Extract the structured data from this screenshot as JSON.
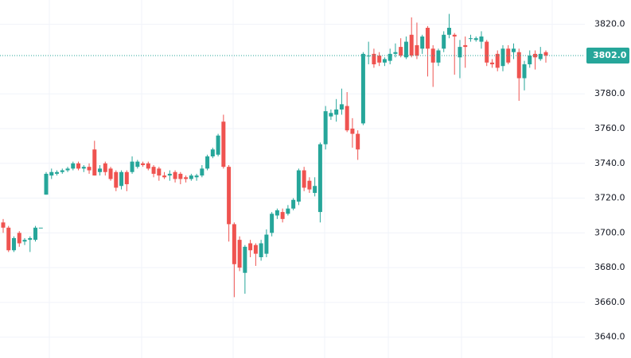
{
  "chart_data": {
    "type": "candlestick",
    "up_color": "#26a69a",
    "down_color": "#ef5350",
    "grid": true,
    "ylim": [
      3628,
      3834
    ],
    "yticks": [
      {
        "value": 3640,
        "label": "3640.0"
      },
      {
        "value": 3660,
        "label": "3660.0"
      },
      {
        "value": 3680,
        "label": "3680.0"
      },
      {
        "value": 3700,
        "label": "3700.0"
      },
      {
        "value": 3720,
        "label": "3720.0"
      },
      {
        "value": 3740,
        "label": "3740.0"
      },
      {
        "value": 3760,
        "label": "3760.0"
      },
      {
        "value": 3780,
        "label": "3780.0"
      },
      {
        "value": 3820,
        "label": "3820.0"
      }
    ],
    "last_price": {
      "value": 3802,
      "label": "3802.0"
    },
    "open": [
      3706,
      3703,
      3690,
      3700,
      3695,
      3696,
      3696,
      3703,
      3722,
      3733,
      3734,
      3735,
      3736,
      3737,
      3740,
      3737,
      3738,
      3748,
      3735,
      3740,
      3737,
      3735,
      3727,
      3735,
      3735,
      3738,
      3740,
      3740,
      3738,
      3737,
      3733,
      3733,
      3735,
      3734,
      3732,
      3731,
      3732,
      3733,
      3737,
      3744,
      3745,
      3764,
      3738,
      3705,
      3696,
      3677,
      3694,
      3693,
      3686,
      3688,
      3700,
      3710,
      3712,
      3711,
      3714,
      3718,
      3736,
      3730,
      3723,
      3712,
      3751,
      3767,
      3768,
      3771,
      3773,
      3760,
      3757,
      3763,
      3802,
      3803,
      3802,
      3798,
      3799,
      3803,
      3807,
      3801,
      3814,
      3808,
      3806,
      3818,
      3806,
      3798,
      3806,
      3814,
      3814,
      3801,
      3808,
      3812,
      3811,
      3810,
      3810,
      3798,
      3803,
      3796,
      3806,
      3804,
      3804,
      3789,
      3797,
      3803,
      3800,
      3804
    ],
    "high": [
      3708,
      3704,
      3698,
      3701,
      3697,
      3698,
      3704,
      3703,
      3735,
      3737,
      3736,
      3737,
      3738,
      3741,
      3741,
      3739,
      3740,
      3753,
      3739,
      3741,
      3738,
      3736,
      3736,
      3736,
      3744,
      3742,
      3741,
      3741,
      3739,
      3738,
      3735,
      3736,
      3736,
      3735,
      3733,
      3734,
      3734,
      3739,
      3745,
      3749,
      3757,
      3768,
      3739,
      3706,
      3698,
      3693,
      3696,
      3694,
      3696,
      3702,
      3712,
      3714,
      3714,
      3716,
      3720,
      3737,
      3738,
      3732,
      3732,
      3752,
      3773,
      3771,
      3777,
      3783,
      3781,
      3766,
      3759,
      3804,
      3810,
      3806,
      3804,
      3801,
      3806,
      3809,
      3812,
      3813,
      3824,
      3821,
      3814,
      3819,
      3808,
      3806,
      3816,
      3826,
      3815,
      3811,
      3813,
      3814,
      3813,
      3816,
      3811,
      3800,
      3805,
      3808,
      3808,
      3809,
      3806,
      3799,
      3805,
      3805,
      3807,
      3805
    ],
    "low": [
      3700,
      3689,
      3689,
      3692,
      3693,
      3689,
      3695,
      3703,
      3722,
      3731,
      3733,
      3734,
      3735,
      3736,
      3736,
      3735,
      3734,
      3733,
      3733,
      3733,
      3730,
      3724,
      3725,
      3724,
      3734,
      3737,
      3738,
      3736,
      3732,
      3730,
      3731,
      3730,
      3729,
      3728,
      3729,
      3730,
      3730,
      3732,
      3736,
      3743,
      3744,
      3737,
      3695,
      3663,
      3678,
      3665,
      3686,
      3681,
      3684,
      3686,
      3698,
      3708,
      3706,
      3710,
      3713,
      3716,
      3724,
      3723,
      3721,
      3706,
      3748,
      3765,
      3764,
      3768,
      3758,
      3749,
      3742,
      3762,
      3797,
      3795,
      3796,
      3796,
      3797,
      3801,
      3801,
      3800,
      3801,
      3800,
      3803,
      3790,
      3784,
      3796,
      3804,
      3812,
      3791,
      3789,
      3795,
      3810,
      3810,
      3806,
      3796,
      3795,
      3793,
      3793,
      3797,
      3800,
      3776,
      3782,
      3795,
      3794,
      3799,
      3798
    ],
    "close": [
      3703,
      3690,
      3697,
      3694,
      3696,
      3697,
      3703,
      3703,
      3734,
      3735,
      3735,
      3736,
      3737,
      3740,
      3737,
      3738,
      3736,
      3733,
      3737,
      3735,
      3731,
      3726,
      3735,
      3728,
      3741,
      3741,
      3739,
      3737,
      3734,
      3733,
      3732,
      3734,
      3731,
      3731,
      3731,
      3733,
      3733,
      3737,
      3744,
      3748,
      3756,
      3738,
      3705,
      3682,
      3680,
      3692,
      3690,
      3688,
      3694,
      3699,
      3711,
      3713,
      3708,
      3714,
      3719,
      3736,
      3726,
      3725,
      3727,
      3751,
      3770,
      3769,
      3771,
      3774,
      3759,
      3757,
      3748,
      3803,
      3802,
      3797,
      3798,
      3800,
      3803,
      3804,
      3802,
      3810,
      3802,
      3802,
      3813,
      3806,
      3798,
      3805,
      3814,
      3818,
      3813,
      3807,
      3807,
      3812,
      3812,
      3813,
      3798,
      3797,
      3795,
      3806,
      3798,
      3806,
      3789,
      3797,
      3802,
      3801,
      3803,
      3802
    ]
  }
}
